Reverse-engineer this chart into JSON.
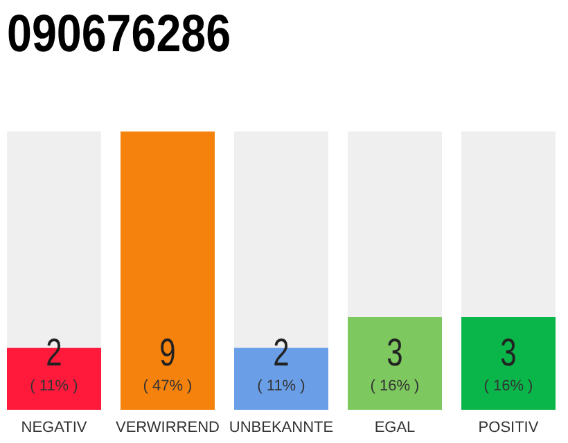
{
  "chart_data": {
    "type": "bar",
    "title": "090676286",
    "categories": [
      "NEGATIV",
      "VERWIRREND",
      "UNBEKANNTE",
      "EGAL",
      "POSITIV"
    ],
    "values": [
      2,
      9,
      2,
      3,
      3
    ],
    "colors": [
      "#ff1a3c",
      "#f5820d",
      "#6a9fe8",
      "#7ec860",
      "#0ab54a"
    ],
    "data_labels": true,
    "tick_labels": "x",
    "annotations": [
      "( 11% )",
      "( 47% )",
      "( 11% )",
      "( 16% )",
      "( 16% )"
    ]
  }
}
